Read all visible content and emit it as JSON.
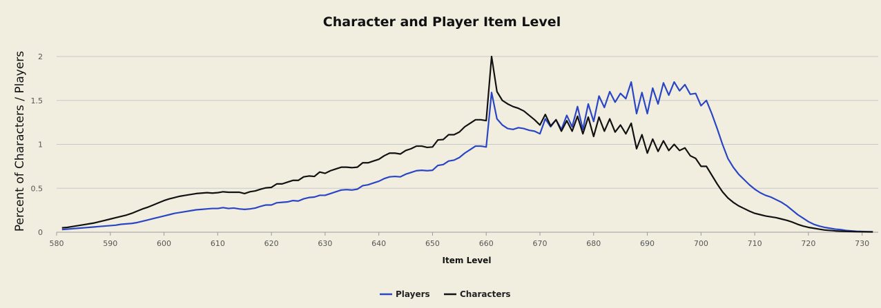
{
  "chart_data": {
    "type": "line",
    "title": "Character and Player Item Level",
    "xlabel": "Item Level",
    "ylabel": "Percent of Characters / Players",
    "xlim": [
      580,
      733
    ],
    "ylim": [
      0,
      2
    ],
    "xticks": [
      580,
      590,
      600,
      610,
      620,
      630,
      640,
      650,
      660,
      670,
      680,
      690,
      700,
      710,
      720,
      730
    ],
    "yticks": [
      0,
      0.5,
      1,
      1.5,
      2
    ],
    "grid": true,
    "legend": "bottom-center",
    "x_start": 581,
    "x_end": 732,
    "series": [
      {
        "name": "Players",
        "color": "#2a45c4",
        "values": [
          0.03,
          0.035,
          0.04,
          0.045,
          0.05,
          0.055,
          0.06,
          0.065,
          0.07,
          0.075,
          0.08,
          0.09,
          0.095,
          0.1,
          0.11,
          0.125,
          0.14,
          0.155,
          0.17,
          0.185,
          0.2,
          0.215,
          0.225,
          0.235,
          0.245,
          0.255,
          0.26,
          0.265,
          0.27,
          0.27,
          0.28,
          0.27,
          0.275,
          0.265,
          0.26,
          0.265,
          0.275,
          0.295,
          0.31,
          0.31,
          0.335,
          0.34,
          0.345,
          0.36,
          0.355,
          0.38,
          0.395,
          0.4,
          0.42,
          0.42,
          0.44,
          0.46,
          0.48,
          0.485,
          0.48,
          0.49,
          0.53,
          0.54,
          0.56,
          0.58,
          0.61,
          0.63,
          0.635,
          0.63,
          0.66,
          0.68,
          0.7,
          0.705,
          0.7,
          0.705,
          0.76,
          0.77,
          0.81,
          0.82,
          0.85,
          0.9,
          0.94,
          0.98,
          0.98,
          0.97,
          1.59,
          1.29,
          1.22,
          1.18,
          1.17,
          1.19,
          1.18,
          1.16,
          1.15,
          1.12,
          1.29,
          1.2,
          1.28,
          1.17,
          1.33,
          1.2,
          1.43,
          1.17,
          1.46,
          1.26,
          1.55,
          1.42,
          1.6,
          1.48,
          1.58,
          1.52,
          1.71,
          1.35,
          1.59,
          1.35,
          1.64,
          1.46,
          1.7,
          1.56,
          1.71,
          1.61,
          1.68,
          1.57,
          1.58,
          1.44,
          1.5,
          1.35,
          1.18,
          1.0,
          0.84,
          0.74,
          0.66,
          0.6,
          0.54,
          0.49,
          0.45,
          0.42,
          0.4,
          0.37,
          0.34,
          0.3,
          0.25,
          0.2,
          0.16,
          0.12,
          0.09,
          0.07,
          0.055,
          0.045,
          0.035,
          0.03,
          0.02,
          0.015,
          0.01,
          0.008,
          0.006,
          0.005
        ]
      },
      {
        "name": "Characters",
        "color": "#111111",
        "values": [
          0.05,
          0.055,
          0.065,
          0.075,
          0.085,
          0.095,
          0.105,
          0.12,
          0.135,
          0.15,
          0.165,
          0.18,
          0.195,
          0.215,
          0.24,
          0.265,
          0.285,
          0.31,
          0.335,
          0.36,
          0.38,
          0.395,
          0.41,
          0.42,
          0.43,
          0.44,
          0.445,
          0.45,
          0.445,
          0.45,
          0.46,
          0.455,
          0.455,
          0.455,
          0.44,
          0.46,
          0.47,
          0.49,
          0.505,
          0.51,
          0.55,
          0.55,
          0.57,
          0.59,
          0.59,
          0.63,
          0.64,
          0.635,
          0.685,
          0.67,
          0.7,
          0.72,
          0.74,
          0.74,
          0.735,
          0.74,
          0.79,
          0.79,
          0.81,
          0.83,
          0.87,
          0.9,
          0.9,
          0.89,
          0.93,
          0.95,
          0.98,
          0.98,
          0.965,
          0.97,
          1.05,
          1.055,
          1.11,
          1.11,
          1.14,
          1.2,
          1.24,
          1.28,
          1.28,
          1.27,
          2.0,
          1.6,
          1.5,
          1.46,
          1.43,
          1.41,
          1.38,
          1.33,
          1.28,
          1.22,
          1.34,
          1.21,
          1.28,
          1.15,
          1.27,
          1.15,
          1.32,
          1.12,
          1.31,
          1.09,
          1.31,
          1.15,
          1.29,
          1.14,
          1.22,
          1.12,
          1.24,
          0.95,
          1.11,
          0.9,
          1.06,
          0.92,
          1.04,
          0.93,
          1.0,
          0.93,
          0.96,
          0.87,
          0.84,
          0.75,
          0.75,
          0.65,
          0.55,
          0.46,
          0.39,
          0.34,
          0.3,
          0.27,
          0.24,
          0.215,
          0.2,
          0.185,
          0.175,
          0.165,
          0.15,
          0.135,
          0.115,
          0.09,
          0.07,
          0.055,
          0.045,
          0.035,
          0.025,
          0.02,
          0.015,
          0.012,
          0.01,
          0.008,
          0.006,
          0.005,
          0.004,
          0.003
        ]
      }
    ]
  }
}
